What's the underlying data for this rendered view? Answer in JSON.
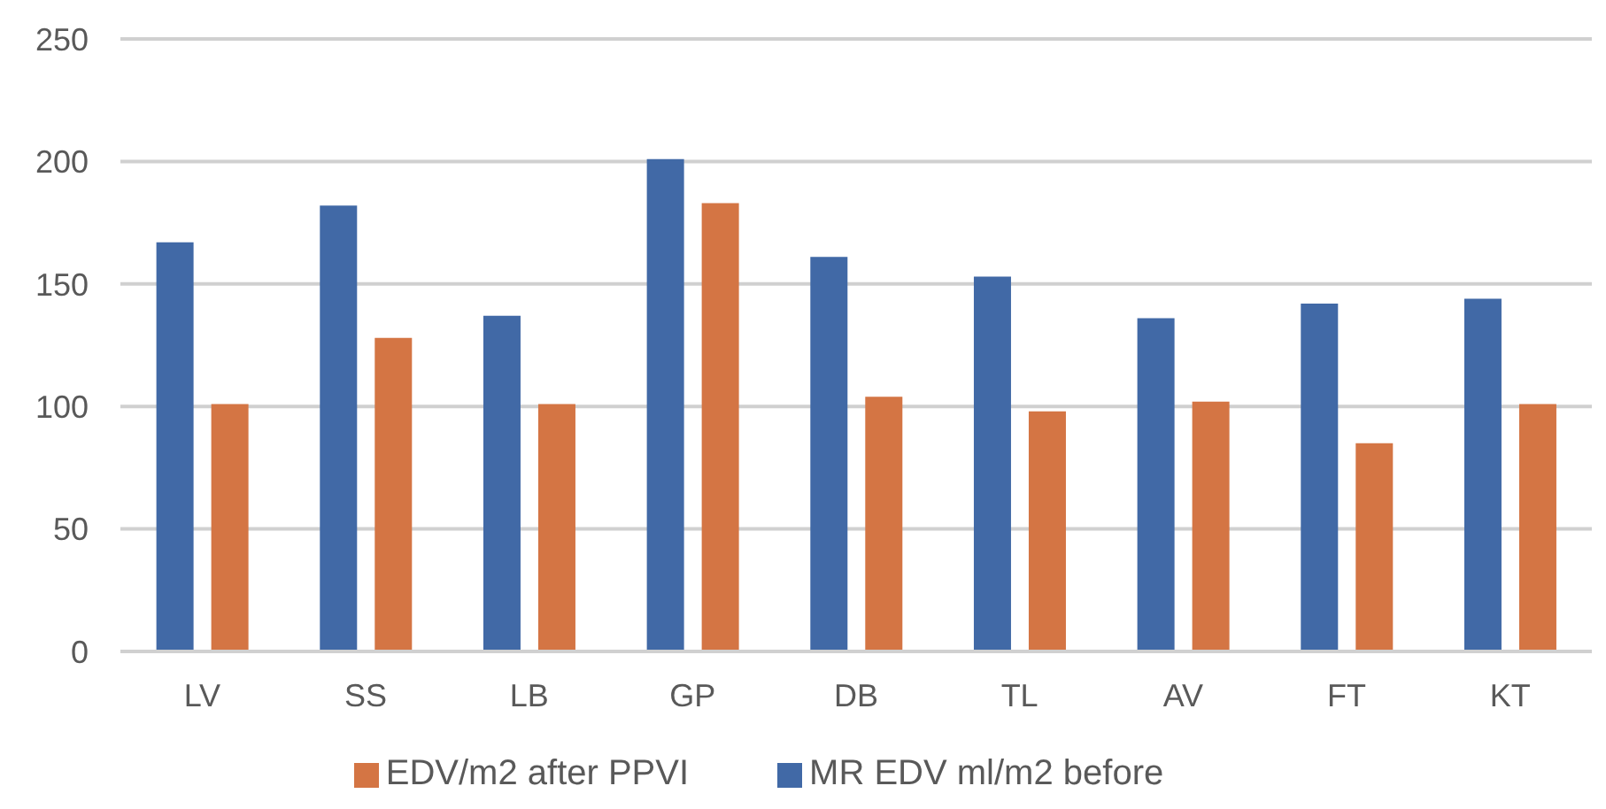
{
  "chart_data": {
    "type": "bar",
    "categories": [
      "LV",
      "SS",
      "LB",
      "GP",
      "DB",
      "TL",
      "AV",
      "FT",
      "KT"
    ],
    "series": [
      {
        "name": "MR EDV ml/m2 before",
        "color": "#4169a6",
        "values": [
          167,
          182,
          137,
          201,
          161,
          153,
          136,
          142,
          144
        ]
      },
      {
        "name": "EDV/m2 after PPVI",
        "color": "#d47544",
        "values": [
          101,
          128,
          101,
          183,
          104,
          98,
          102,
          85,
          101
        ]
      }
    ],
    "ylim": [
      0,
      250
    ],
    "yticks": [
      0,
      50,
      100,
      150,
      200,
      250
    ],
    "grid": "y",
    "legend": "bottom"
  }
}
